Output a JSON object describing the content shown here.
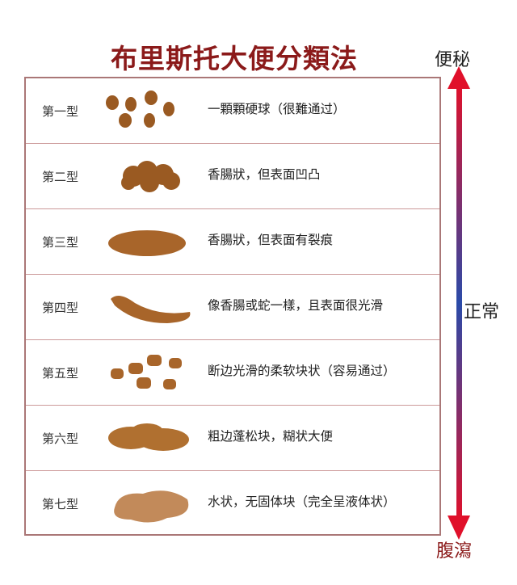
{
  "title": "布里斯托大便分類法",
  "scale": {
    "top": "便秘",
    "middle": "正常",
    "bottom": "腹瀉",
    "colors": {
      "ends": "#e0102a",
      "middle": "#2a4aa8"
    }
  },
  "stool_color": "#a8652a",
  "rows": [
    {
      "type": "第一型",
      "desc": "一顆顆硬球（很難通过）"
    },
    {
      "type": "第二型",
      "desc": "香腸狀，但表面凹凸"
    },
    {
      "type": "第三型",
      "desc": "香腸狀，但表面有裂痕"
    },
    {
      "type": "第四型",
      "desc": "像香腸或蛇一樣，且表面很光滑"
    },
    {
      "type": "第五型",
      "desc": "断边光滑的柔软块状（容易通过）"
    },
    {
      "type": "第六型",
      "desc": "粗边蓬松块，糊状大便"
    },
    {
      "type": "第七型",
      "desc": "水状，无固体块（完全呈液体状）"
    }
  ]
}
